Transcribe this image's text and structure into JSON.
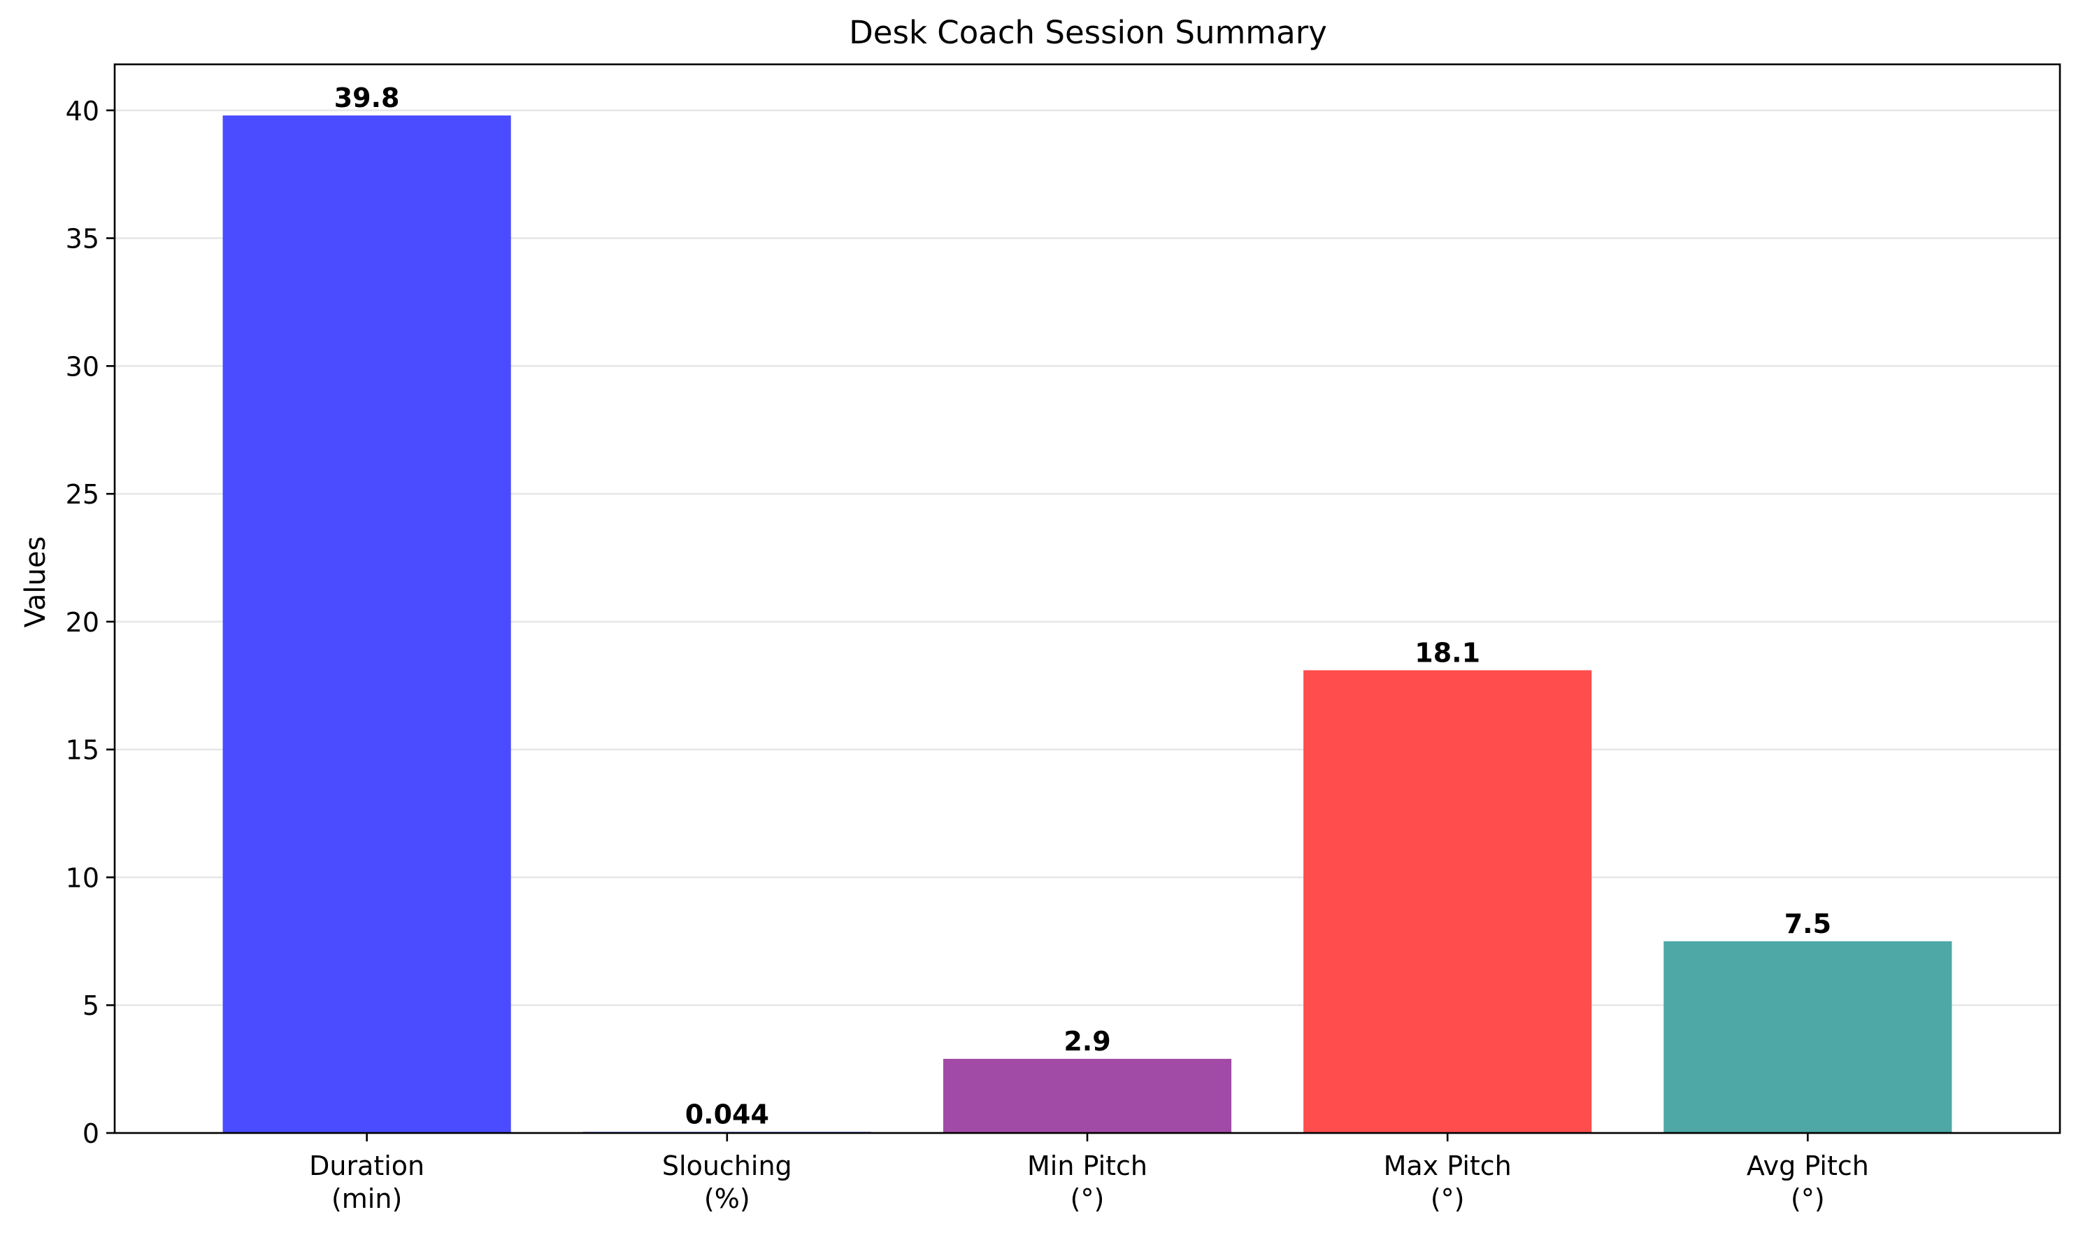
{
  "chart_data": {
    "type": "bar",
    "title": "Desk Coach Session Summary",
    "xlabel": "",
    "ylabel": "Values",
    "ylim": [
      0,
      41.8
    ],
    "yticks": [
      0,
      5,
      10,
      15,
      20,
      25,
      30,
      35,
      40
    ],
    "grid": "horizontal",
    "legend": "none",
    "categories": [
      [
        "Duration",
        "(min)"
      ],
      [
        "Slouching",
        "(%)"
      ],
      [
        "Min Pitch",
        "(°)"
      ],
      [
        "Max Pitch",
        "(°)"
      ],
      [
        "Avg Pitch",
        "(°)"
      ]
    ],
    "values": [
      39.8,
      0.044,
      2.9,
      18.1,
      7.5
    ],
    "value_labels": [
      "39.8",
      "0.044",
      "2.9",
      "18.1",
      "7.5"
    ],
    "colors": [
      "#4b4bff",
      "#4b4bff",
      "#a24ba6",
      "#ff4d4d",
      "#4da8a6"
    ]
  }
}
